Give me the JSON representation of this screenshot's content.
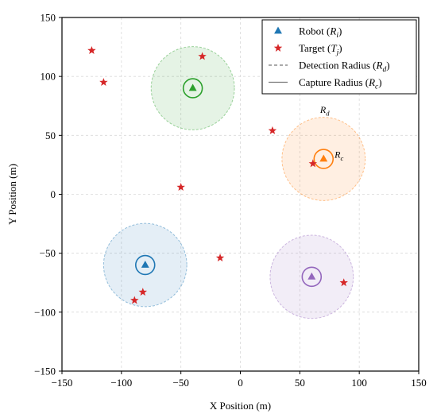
{
  "chart_data": {
    "type": "scatter",
    "xlabel": "X Position (m)",
    "ylabel": "Y Position (m)",
    "xlim": [
      -150,
      150
    ],
    "ylim": [
      -150,
      150
    ],
    "xticks": [
      -150,
      -100,
      -50,
      0,
      50,
      100,
      150
    ],
    "yticks": [
      -150,
      -100,
      -50,
      0,
      50,
      100,
      150
    ],
    "xtick_labels": [
      "−150",
      "−100",
      "−50",
      "0",
      "50",
      "100",
      "150"
    ],
    "ytick_labels": [
      "−150",
      "−100",
      "−50",
      "0",
      "50",
      "100",
      "150"
    ],
    "grid": true,
    "legend_position": "top-right",
    "detection_radius": 35,
    "capture_radius": 8,
    "robots": [
      {
        "x": -40,
        "y": 90,
        "color": "#2ca02c"
      },
      {
        "x": 70,
        "y": 30,
        "color": "#ff7f0e"
      },
      {
        "x": -80,
        "y": -60,
        "color": "#1f77b4"
      },
      {
        "x": 60,
        "y": -70,
        "color": "#9467bd"
      }
    ],
    "targets": [
      {
        "x": -125,
        "y": 122
      },
      {
        "x": -115,
        "y": 95
      },
      {
        "x": -32,
        "y": 117
      },
      {
        "x": 27,
        "y": 54
      },
      {
        "x": 61,
        "y": 26
      },
      {
        "x": -50,
        "y": 6
      },
      {
        "x": -17,
        "y": -54
      },
      {
        "x": 87,
        "y": -75
      },
      {
        "x": -82,
        "y": -83
      },
      {
        "x": -89,
        "y": -90
      }
    ],
    "target_color": "#d62728",
    "annotations": [
      {
        "text": "R",
        "sub": "d",
        "x": 71,
        "y": 69
      },
      {
        "text": "R",
        "sub": "c",
        "x": 83,
        "y": 31
      }
    ],
    "legend": [
      {
        "kind": "robot",
        "text": "Robot (",
        "var": "R",
        "sub": "i",
        "end": ")",
        "color": "#1f77b4"
      },
      {
        "kind": "target",
        "text": "Target (",
        "var": "T",
        "sub": "j",
        "end": ")",
        "color": "#d62728"
      },
      {
        "kind": "detection",
        "text": "Detection Radius (",
        "var": "R",
        "sub": "d",
        "end": ")",
        "color": "#777777"
      },
      {
        "kind": "capture",
        "text": "Capture Radius (",
        "var": "R",
        "sub": "c",
        "end": ")",
        "color": "#777777"
      }
    ]
  }
}
